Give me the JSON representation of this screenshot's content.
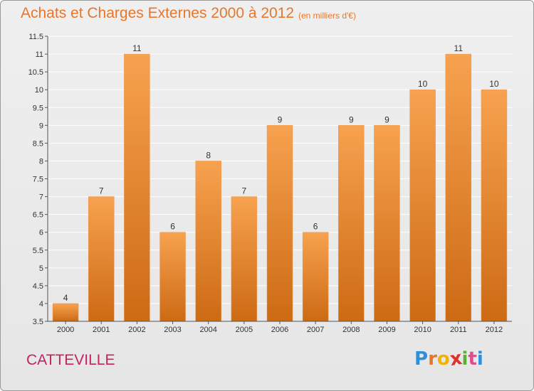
{
  "header": {
    "title": "Achats et Charges Externes 2000 à 2012",
    "subtitle": "(en milliers d'€)"
  },
  "footer": {
    "commune": "CATTEVILLE",
    "logo_letters": [
      "P",
      "r",
      "o",
      "x",
      "i",
      "t",
      "i"
    ],
    "logo_colors": [
      "#2f8fd8",
      "#e8762a",
      "#f0b400",
      "#e0302c",
      "#59b031",
      "#e04c8c",
      "#2f8fd8"
    ]
  },
  "colors": {
    "bar_top": "#f7a24f",
    "bar_bottom": "#cd6a14",
    "grid": "#ffffff",
    "axis_text": "#333333"
  },
  "chart_data": {
    "type": "bar",
    "title": "Achats et Charges Externes 2000 à 2012",
    "subtitle": "(en milliers d'€)",
    "categories": [
      "2000",
      "2001",
      "2002",
      "2003",
      "2004",
      "2005",
      "2006",
      "2007",
      "2008",
      "2009",
      "2010",
      "2011",
      "2012"
    ],
    "values": [
      4,
      7,
      11,
      6,
      8,
      7,
      9,
      6,
      9,
      9,
      10,
      11,
      10
    ],
    "data_labels": [
      "4",
      "7",
      "11",
      "6",
      "8",
      "7",
      "9",
      "6",
      "9",
      "9",
      "10",
      "11",
      "10"
    ],
    "ylim": [
      3.5,
      11.5
    ],
    "yticks": [
      3.5,
      4,
      4.5,
      5,
      5.5,
      6,
      6.5,
      7,
      7.5,
      8,
      8.5,
      9,
      9.5,
      10,
      10.5,
      11,
      11.5
    ],
    "ytick_labels": [
      "3.5",
      "4",
      "4.5",
      "5",
      "5.5",
      "6",
      "6.5",
      "7",
      "7.5",
      "8",
      "8.5",
      "9",
      "9.5",
      "10",
      "10.5",
      "11",
      "11.5"
    ],
    "grid": true
  }
}
